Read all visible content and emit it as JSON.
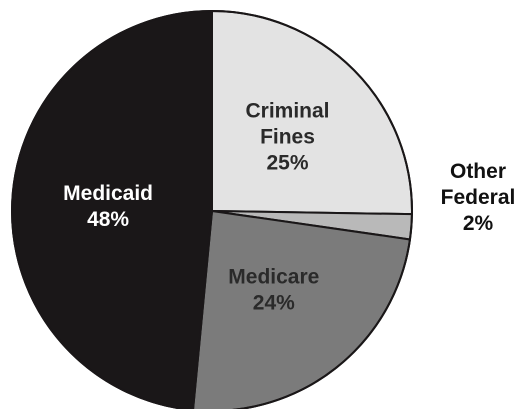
{
  "chart_data": {
    "type": "pie",
    "title": "",
    "slices": [
      {
        "name": "Criminal Fines",
        "value": 25,
        "label_lines": [
          "Criminal",
          "Fines",
          "25%"
        ],
        "color": "#e3e3e3"
      },
      {
        "name": "Other Federal",
        "value": 2,
        "label_lines": [
          "Other",
          "Federal",
          "2%"
        ],
        "color": "#b9b9b9"
      },
      {
        "name": "Medicare",
        "value": 24,
        "label_lines": [
          "Medicare",
          "24%"
        ],
        "color": "#7b7b7b"
      },
      {
        "name": "Medicaid",
        "value": 48,
        "label_lines": [
          "Medicaid",
          "48%"
        ],
        "color": "#1a1718"
      }
    ],
    "start_angle_deg": 0,
    "direction": "clockwise",
    "legend": "none",
    "slice_border_color": "#1a1718"
  }
}
